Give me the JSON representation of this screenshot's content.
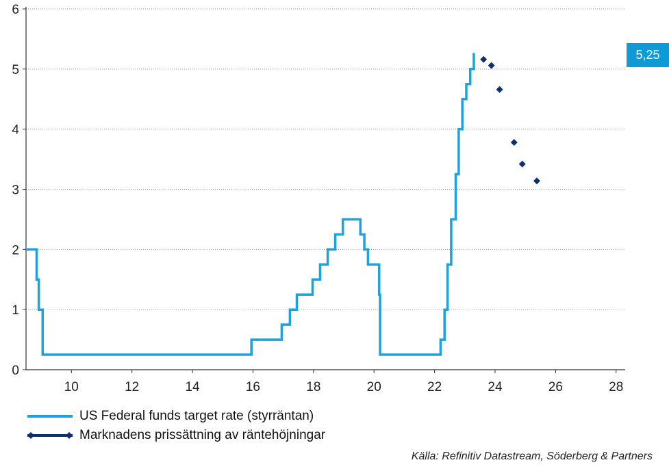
{
  "chart_data": {
    "type": "line",
    "title": "",
    "xlabel": "",
    "ylabel": "",
    "xlim": [
      8.5,
      28.3
    ],
    "ylim": [
      0,
      6
    ],
    "x_ticks": [
      10,
      12,
      14,
      16,
      18,
      20,
      22,
      24,
      26,
      28
    ],
    "y_ticks": [
      0,
      1,
      2,
      3,
      4,
      5,
      6
    ],
    "grid": "horizontal dotted",
    "legend_position": "bottom-left",
    "colors": {
      "fed_rate": "#1aa3de",
      "market": "#0d2f6e",
      "callout_bg": "#0e9ad7"
    },
    "series": [
      {
        "name": "US Federal funds target rate (styrräntan)",
        "style": "step",
        "points": [
          [
            8.5,
            2.0
          ],
          [
            8.85,
            2.0
          ],
          [
            8.85,
            1.5
          ],
          [
            8.92,
            1.5
          ],
          [
            8.92,
            1.0
          ],
          [
            9.05,
            1.0
          ],
          [
            9.05,
            0.25
          ],
          [
            15.95,
            0.25
          ],
          [
            15.95,
            0.5
          ],
          [
            16.95,
            0.5
          ],
          [
            16.95,
            0.75
          ],
          [
            17.22,
            0.75
          ],
          [
            17.22,
            1.0
          ],
          [
            17.45,
            1.0
          ],
          [
            17.45,
            1.25
          ],
          [
            17.97,
            1.25
          ],
          [
            17.97,
            1.5
          ],
          [
            18.22,
            1.5
          ],
          [
            18.22,
            1.75
          ],
          [
            18.47,
            1.75
          ],
          [
            18.47,
            2.0
          ],
          [
            18.72,
            2.0
          ],
          [
            18.72,
            2.25
          ],
          [
            18.97,
            2.25
          ],
          [
            18.97,
            2.5
          ],
          [
            19.55,
            2.5
          ],
          [
            19.55,
            2.25
          ],
          [
            19.68,
            2.25
          ],
          [
            19.68,
            2.0
          ],
          [
            19.8,
            2.0
          ],
          [
            19.8,
            1.75
          ],
          [
            20.17,
            1.75
          ],
          [
            20.17,
            1.25
          ],
          [
            20.2,
            1.25
          ],
          [
            20.2,
            0.25
          ],
          [
            22.2,
            0.25
          ],
          [
            22.2,
            0.5
          ],
          [
            22.33,
            0.5
          ],
          [
            22.33,
            1.0
          ],
          [
            22.43,
            1.0
          ],
          [
            22.43,
            1.75
          ],
          [
            22.55,
            1.75
          ],
          [
            22.55,
            2.5
          ],
          [
            22.7,
            2.5
          ],
          [
            22.7,
            3.25
          ],
          [
            22.8,
            3.25
          ],
          [
            22.8,
            4.0
          ],
          [
            22.92,
            4.0
          ],
          [
            22.92,
            4.5
          ],
          [
            23.05,
            4.5
          ],
          [
            23.05,
            4.75
          ],
          [
            23.18,
            4.75
          ],
          [
            23.18,
            5.0
          ],
          [
            23.3,
            5.0
          ],
          [
            23.3,
            5.25
          ],
          [
            23.33,
            5.25
          ]
        ]
      },
      {
        "name": "Marknadens prissättning av räntehöjningar",
        "style": "markers",
        "points": [
          [
            23.62,
            5.16
          ],
          [
            23.88,
            5.06
          ],
          [
            24.15,
            4.66
          ],
          [
            24.63,
            3.78
          ],
          [
            24.9,
            3.42
          ],
          [
            25.38,
            3.14
          ]
        ]
      }
    ],
    "annotation": "5,25",
    "source": "Källa: Refinitiv Datastream, Söderberg & Partners"
  }
}
